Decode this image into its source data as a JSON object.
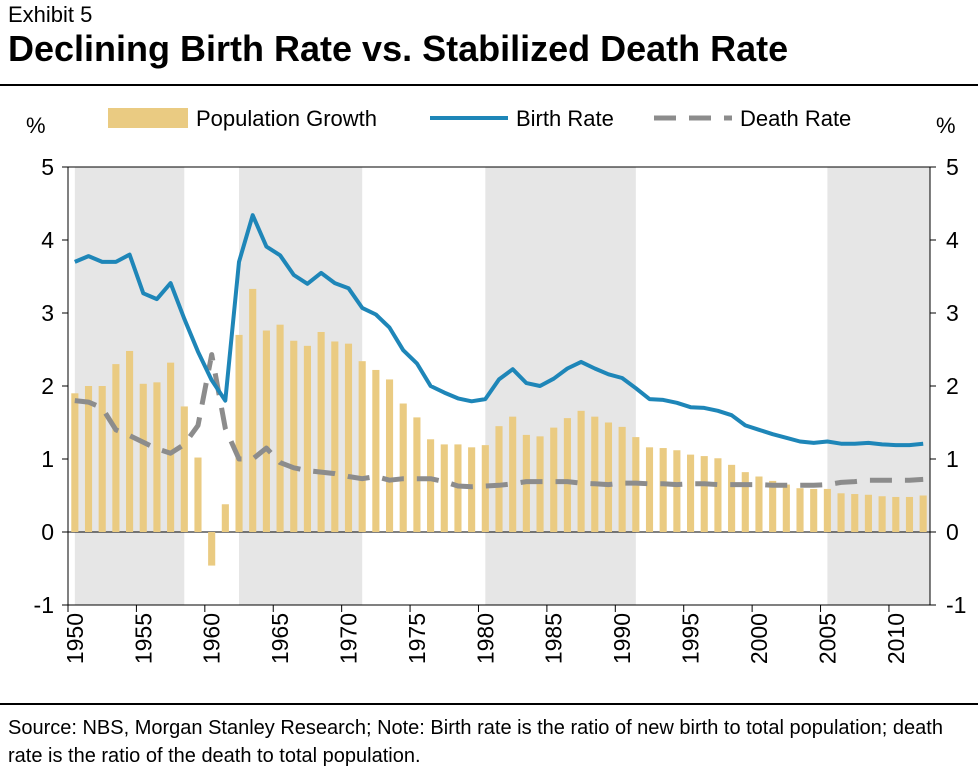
{
  "header": {
    "exhibit": "Exhibit 5",
    "title": "Declining Birth Rate vs. Stabilized Death Rate"
  },
  "footer": {
    "source": "Source: NBS, Morgan Stanley Research; Note: Birth rate is the ratio of new birth to total population; death rate is the ratio of the death to total population."
  },
  "colors": {
    "growth": "#EACB82",
    "birth": "#1E86B8",
    "death": "#8C8C8C",
    "shade": "#E6E6E6"
  },
  "chart_data": {
    "type": "bar+line",
    "title": "Declining Birth Rate vs. Stabilized Death Rate",
    "ylabel_left": "%",
    "ylabel_right": "%",
    "ylim": [
      -1,
      5
    ],
    "yticks": [
      "-1",
      "0",
      "1",
      "2",
      "3",
      "4",
      "5"
    ],
    "xticks": [
      "1950",
      "1955",
      "1960",
      "1965",
      "1970",
      "1975",
      "1980",
      "1985",
      "1990",
      "1995",
      "2000",
      "2005",
      "2010"
    ],
    "legend": [
      "Population Growth",
      "Birth Rate",
      "Death Rate"
    ],
    "legend_position": "top-center",
    "shaded_periods": [
      [
        1950,
        1958
      ],
      [
        1962,
        1971
      ],
      [
        1980,
        1991
      ],
      [
        2005,
        2013
      ]
    ],
    "years": [
      1950,
      1951,
      1952,
      1953,
      1954,
      1955,
      1956,
      1957,
      1958,
      1959,
      1960,
      1961,
      1962,
      1963,
      1964,
      1965,
      1966,
      1967,
      1968,
      1969,
      1970,
      1971,
      1972,
      1973,
      1974,
      1975,
      1976,
      1977,
      1978,
      1979,
      1980,
      1981,
      1982,
      1983,
      1984,
      1985,
      1986,
      1987,
      1988,
      1989,
      1990,
      1991,
      1992,
      1993,
      1994,
      1995,
      1996,
      1997,
      1998,
      1999,
      2000,
      2001,
      2002,
      2003,
      2004,
      2005,
      2006,
      2007,
      2008,
      2009,
      2010,
      2011,
      2012
    ],
    "series": [
      {
        "name": "Population Growth",
        "type": "bar",
        "values": [
          1.9,
          2.0,
          2.0,
          2.3,
          2.48,
          2.03,
          2.05,
          2.32,
          1.72,
          1.02,
          -0.46,
          0.38,
          2.7,
          3.33,
          2.76,
          2.84,
          2.62,
          2.55,
          2.74,
          2.61,
          2.58,
          2.34,
          2.22,
          2.09,
          1.76,
          1.57,
          1.27,
          1.2,
          1.2,
          1.16,
          1.19,
          1.45,
          1.58,
          1.33,
          1.31,
          1.43,
          1.56,
          1.66,
          1.58,
          1.5,
          1.44,
          1.3,
          1.16,
          1.15,
          1.12,
          1.06,
          1.04,
          1.01,
          0.92,
          0.82,
          0.76,
          0.7,
          0.65,
          0.6,
          0.59,
          0.59,
          0.53,
          0.52,
          0.51,
          0.49,
          0.48,
          0.48,
          0.5
        ]
      },
      {
        "name": "Birth Rate",
        "type": "line",
        "values": [
          3.7,
          3.78,
          3.7,
          3.7,
          3.8,
          3.27,
          3.19,
          3.41,
          2.92,
          2.47,
          2.08,
          1.8,
          3.7,
          4.34,
          3.91,
          3.79,
          3.52,
          3.4,
          3.55,
          3.41,
          3.34,
          3.07,
          2.98,
          2.8,
          2.49,
          2.31,
          2.0,
          1.91,
          1.83,
          1.79,
          1.82,
          2.09,
          2.23,
          2.04,
          2.0,
          2.1,
          2.24,
          2.33,
          2.24,
          2.16,
          2.11,
          1.97,
          1.82,
          1.81,
          1.77,
          1.71,
          1.7,
          1.66,
          1.6,
          1.46,
          1.4,
          1.34,
          1.29,
          1.24,
          1.22,
          1.24,
          1.21,
          1.21,
          1.22,
          1.2,
          1.19,
          1.19,
          1.21
        ]
      },
      {
        "name": "Death Rate",
        "type": "line",
        "values": [
          1.8,
          1.78,
          1.7,
          1.4,
          1.32,
          1.23,
          1.14,
          1.08,
          1.2,
          1.46,
          2.43,
          1.42,
          1.0,
          1.0,
          1.15,
          0.95,
          0.88,
          0.84,
          0.82,
          0.8,
          0.76,
          0.73,
          0.76,
          0.71,
          0.73,
          0.73,
          0.73,
          0.69,
          0.63,
          0.62,
          0.63,
          0.64,
          0.66,
          0.69,
          0.69,
          0.69,
          0.69,
          0.67,
          0.66,
          0.65,
          0.67,
          0.67,
          0.66,
          0.66,
          0.65,
          0.66,
          0.66,
          0.65,
          0.65,
          0.65,
          0.65,
          0.64,
          0.64,
          0.64,
          0.64,
          0.65,
          0.68,
          0.69,
          0.71,
          0.71,
          0.71,
          0.71,
          0.72
        ]
      }
    ]
  }
}
